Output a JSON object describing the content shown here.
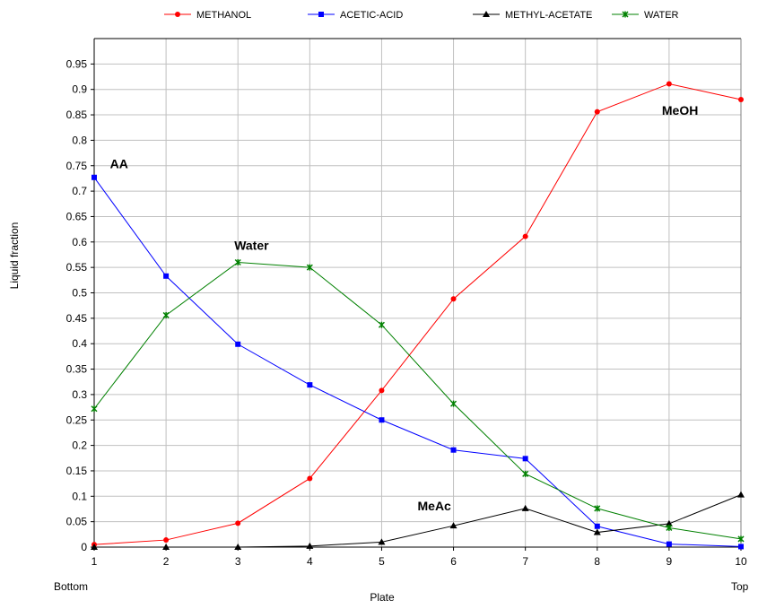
{
  "chart_data": {
    "type": "line",
    "xlabel": "Plate",
    "ylabel": "Liquid fraction",
    "x": [
      1,
      2,
      3,
      4,
      5,
      6,
      7,
      8,
      9,
      10
    ],
    "x_end_labels": {
      "left": "Bottom",
      "right": "Top"
    },
    "xlim": [
      1,
      10
    ],
    "ylim": [
      0,
      1.0
    ],
    "yticks": [
      "0",
      "0.05",
      "0.1",
      "0.15",
      "0.2",
      "0.25",
      "0.3",
      "0.35",
      "0.4",
      "0.45",
      "0.5",
      "0.55",
      "0.6",
      "0.65",
      "0.7",
      "0.75",
      "0.8",
      "0.85",
      "0.9",
      "0.95"
    ],
    "xticks": [
      "1",
      "2",
      "3",
      "4",
      "5",
      "6",
      "7",
      "8",
      "9",
      "10"
    ],
    "grid": true,
    "legend_position": "top",
    "series": [
      {
        "name": "METHANOL",
        "color": "#ff0000",
        "marker": "circle",
        "values": [
          0.005,
          0.014,
          0.047,
          0.135,
          0.308,
          0.488,
          0.611,
          0.856,
          0.911,
          0.88
        ]
      },
      {
        "name": "ACETIC-ACID",
        "color": "#0000ff",
        "marker": "square",
        "values": [
          0.727,
          0.533,
          0.399,
          0.319,
          0.25,
          0.191,
          0.174,
          0.041,
          0.006,
          0.001
        ]
      },
      {
        "name": "METHYL-ACETATE",
        "color": "#000000",
        "marker": "triangle",
        "values": [
          0.0,
          0.0,
          0.0,
          0.002,
          0.01,
          0.042,
          0.076,
          0.029,
          0.046,
          0.103
        ]
      },
      {
        "name": "WATER",
        "color": "#008000",
        "marker": "star",
        "values": [
          0.272,
          0.456,
          0.56,
          0.55,
          0.437,
          0.282,
          0.144,
          0.076,
          0.038,
          0.016
        ]
      }
    ],
    "annotations": [
      {
        "text": "AA",
        "x": 1.22,
        "y": 0.745
      },
      {
        "text": "Water",
        "x": 2.95,
        "y": 0.585
      },
      {
        "text": "MeAc",
        "x": 5.5,
        "y": 0.072
      },
      {
        "text": "MeOH",
        "x": 8.9,
        "y": 0.85
      }
    ]
  }
}
